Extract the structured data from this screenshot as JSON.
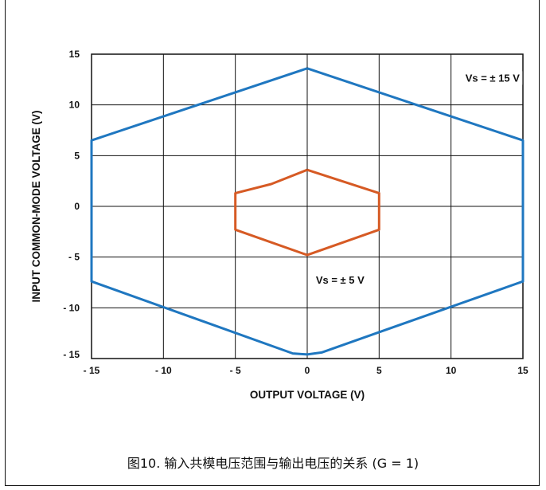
{
  "chart_data": {
    "type": "line",
    "xlabel": "OUTPUT VOLTAGE (V)",
    "ylabel": "INPUT COMMON-MODE VOLTAGE (V)",
    "xlim": [
      -15,
      15
    ],
    "ylim": [
      -15,
      15
    ],
    "x_ticks": [
      -15,
      -10,
      -5,
      0,
      5,
      10,
      15
    ],
    "x_tick_labels": [
      "- 15",
      "- 10",
      "- 5",
      "0",
      "5",
      "10",
      "15"
    ],
    "y_ticks": [
      15,
      10,
      5,
      0,
      -5,
      -10,
      -15
    ],
    "y_tick_labels": [
      "15",
      "10",
      "5",
      "0",
      "- 5",
      "- 10",
      "- 15"
    ],
    "grid": true,
    "series": [
      {
        "color": "#1f77c0",
        "x": [
          0,
          15,
          15,
          1,
          0,
          -1,
          -15,
          -15,
          0
        ],
        "y": [
          13.6,
          6.5,
          -7.4,
          -14.4,
          -14.6,
          -14.5,
          -7.4,
          6.5,
          13.6
        ]
      },
      {
        "color": "#d65a24",
        "x": [
          0,
          5,
          5,
          0,
          -5,
          -5,
          -2.5,
          0
        ],
        "y": [
          3.6,
          1.3,
          -2.3,
          -4.8,
          -2.3,
          1.3,
          2.2,
          3.6
        ]
      }
    ],
    "annotations": [
      {
        "text": "Vs = ± 15 V",
        "x": 11,
        "y": 12.3
      },
      {
        "text": "Vs = ± 5 V",
        "x": 0.6,
        "y": -7.6
      }
    ]
  },
  "caption": "图10. 输入共模电压范围与输出电压的关系 (G = 1)"
}
